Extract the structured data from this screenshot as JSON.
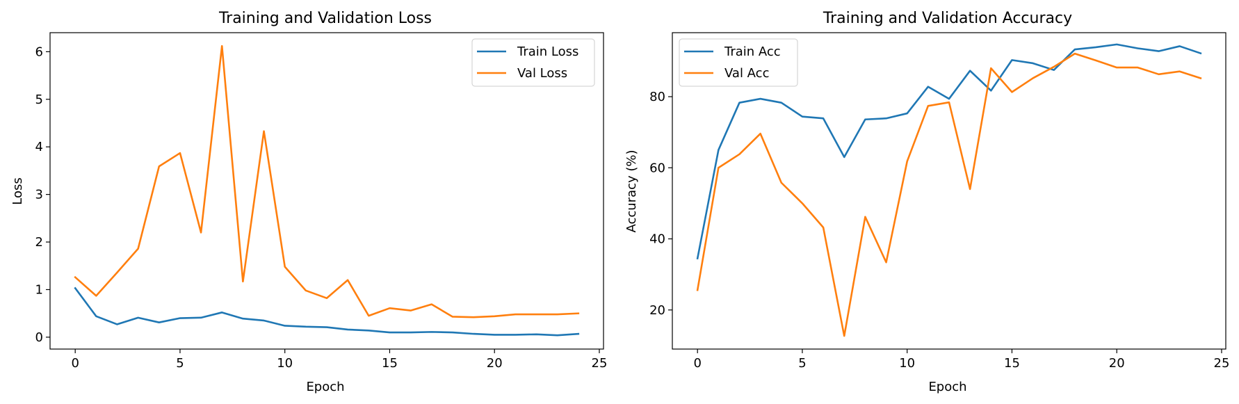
{
  "chart_data": [
    {
      "type": "line",
      "title": "Training and Validation Loss",
      "xlabel": "Epoch",
      "ylabel": "Loss",
      "xlim": [
        -1.2,
        25.2
      ],
      "ylim": [
        -0.25,
        6.4
      ],
      "xticks": [
        0,
        5,
        10,
        15,
        20,
        25
      ],
      "yticks": [
        0,
        1,
        2,
        3,
        4,
        5,
        6
      ],
      "legend_position": "top-right",
      "grid": false,
      "x": [
        0,
        1,
        2,
        3,
        4,
        5,
        6,
        7,
        8,
        9,
        10,
        11,
        12,
        13,
        14,
        15,
        16,
        17,
        18,
        19,
        20,
        21,
        22,
        23,
        24
      ],
      "series": [
        {
          "name": "Train Loss",
          "color": "#1f77b4",
          "values": [
            1.03,
            0.44,
            0.27,
            0.41,
            0.31,
            0.4,
            0.41,
            0.52,
            0.39,
            0.35,
            0.24,
            0.22,
            0.21,
            0.16,
            0.14,
            0.1,
            0.1,
            0.11,
            0.1,
            0.07,
            0.05,
            0.05,
            0.06,
            0.04,
            0.07
          ]
        },
        {
          "name": "Val Loss",
          "color": "#ff7f0e",
          "values": [
            1.26,
            0.87,
            1.36,
            1.86,
            3.59,
            3.87,
            2.2,
            6.12,
            1.17,
            4.33,
            1.48,
            0.98,
            0.82,
            1.2,
            0.45,
            0.61,
            0.56,
            0.69,
            0.43,
            0.42,
            0.44,
            0.48,
            0.48,
            0.48,
            0.5
          ]
        }
      ]
    },
    {
      "type": "line",
      "title": "Training and Validation Accuracy",
      "xlabel": "Epoch",
      "ylabel": "Accuracy (%)",
      "xlim": [
        -1.2,
        25.2
      ],
      "ylim": [
        9,
        98
      ],
      "xticks": [
        0,
        5,
        10,
        15,
        20,
        25
      ],
      "yticks": [
        20,
        40,
        60,
        80
      ],
      "legend_position": "top-left",
      "grid": false,
      "x": [
        0,
        1,
        2,
        3,
        4,
        5,
        6,
        7,
        8,
        9,
        10,
        11,
        12,
        13,
        14,
        15,
        16,
        17,
        18,
        19,
        20,
        21,
        22,
        23,
        24
      ],
      "series": [
        {
          "name": "Train Acc",
          "color": "#1f77b4",
          "values": [
            34.5,
            65.0,
            78.3,
            79.4,
            78.3,
            74.4,
            73.9,
            63.0,
            73.6,
            73.9,
            75.3,
            82.8,
            79.4,
            87.3,
            81.7,
            90.3,
            89.4,
            87.5,
            93.3,
            93.9,
            94.7,
            93.6,
            92.8,
            94.2,
            92.2
          ]
        },
        {
          "name": "Val Acc",
          "color": "#ff7f0e",
          "values": [
            25.6,
            60.0,
            63.8,
            69.6,
            55.8,
            50.0,
            43.2,
            12.7,
            46.2,
            33.4,
            61.8,
            77.4,
            78.4,
            54.0,
            88.0,
            81.3,
            85.2,
            88.4,
            92.1,
            90.2,
            88.2,
            88.2,
            86.3,
            87.1,
            85.2
          ]
        }
      ]
    }
  ]
}
